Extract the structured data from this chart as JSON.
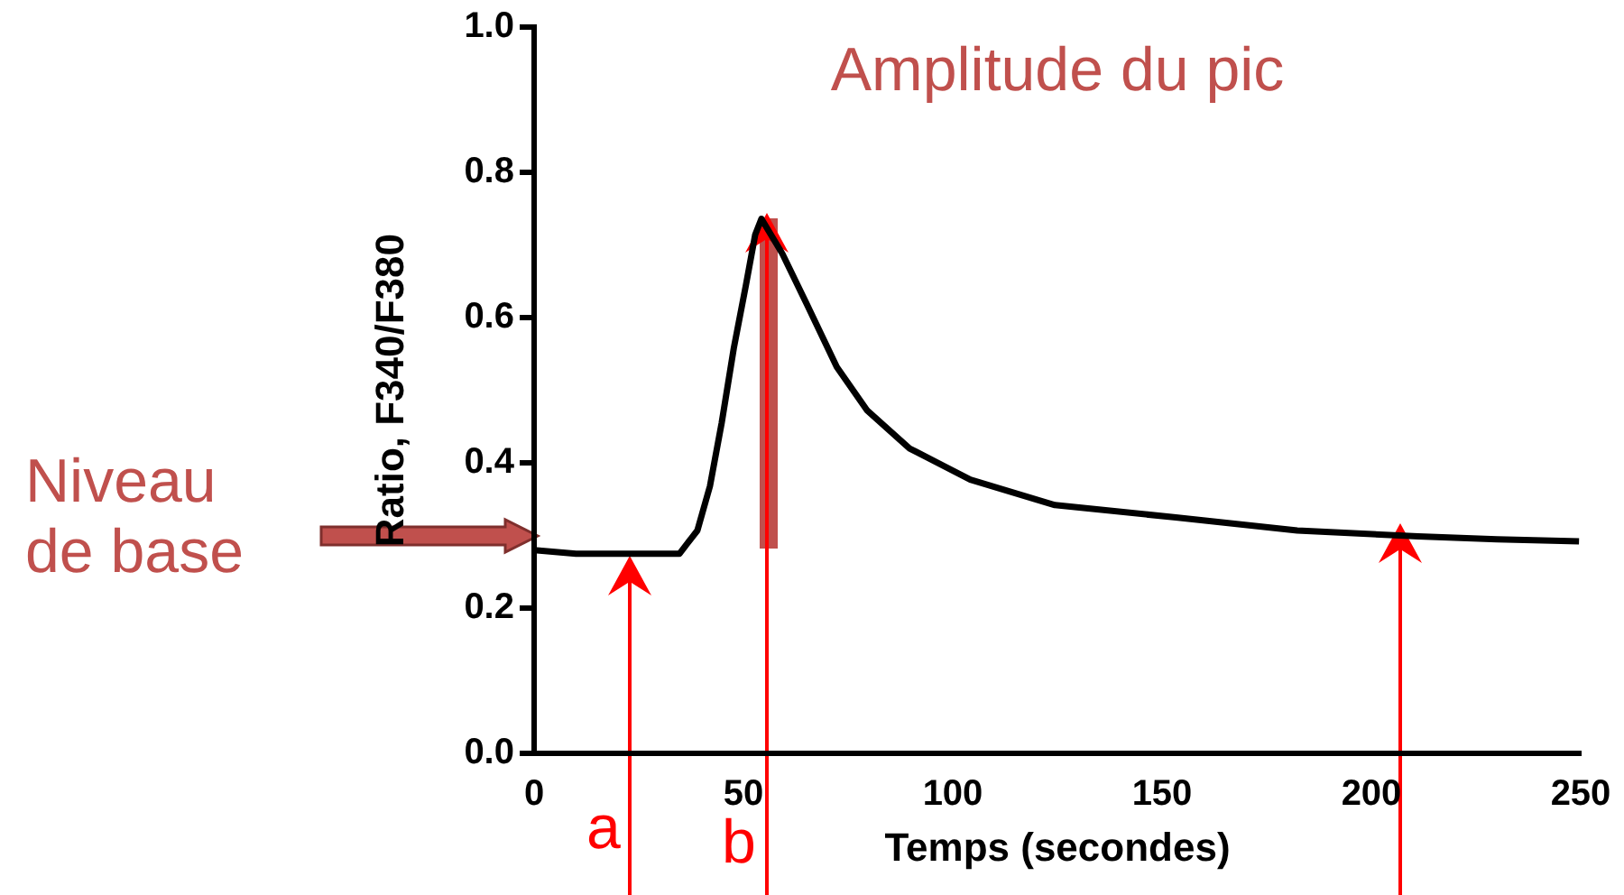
{
  "chart_data": {
    "type": "line",
    "xlabel": "Temps (secondes)",
    "ylabel": "Ratio, F340/F380",
    "x": [
      0,
      10,
      20,
      30,
      34.7,
      39,
      42,
      44.8,
      47.7,
      50.6,
      52.8,
      54.3,
      59.3,
      65.1,
      72.3,
      79.6,
      89.7,
      104.2,
      124.4,
      153.3,
      182.3,
      211.2,
      230,
      249.6
    ],
    "series": [
      {
        "color": "#000000",
        "values": [
          0.28,
          0.275,
          0.275,
          0.275,
          0.275,
          0.307,
          0.368,
          0.455,
          0.558,
          0.645,
          0.714,
          0.736,
          0.688,
          0.619,
          0.532,
          0.472,
          0.42,
          0.377,
          0.342,
          0.325,
          0.307,
          0.299,
          0.295,
          0.292
        ]
      }
    ],
    "xlim": [
      0,
      250
    ],
    "xticks": [
      0,
      50,
      100,
      150,
      200,
      250
    ],
    "ylim": [
      0,
      1
    ],
    "yticks": [
      {
        "value": 0,
        "label": "0.0"
      },
      {
        "value": 0.2,
        "label": "0.2"
      },
      {
        "value": 0.4,
        "label": "0.4"
      },
      {
        "value": 0.6,
        "label": "0.6"
      },
      {
        "value": 0.8,
        "label": "0.8"
      },
      {
        "value": 1,
        "label": "1.0"
      }
    ],
    "grid": false,
    "legend": false,
    "marker": "none",
    "line_style": "solid",
    "annotations": [
      "Amplitude du pic",
      "Niveau de base",
      "a",
      "b"
    ]
  }
}
